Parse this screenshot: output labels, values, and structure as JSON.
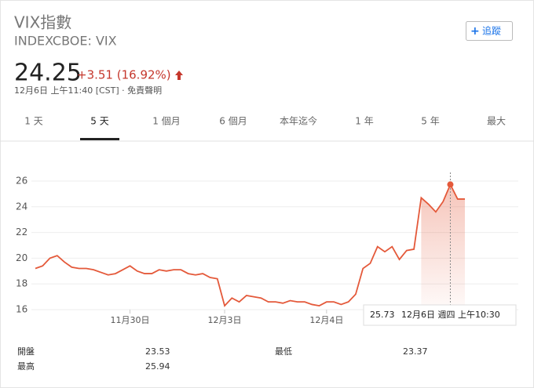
{
  "header": {
    "title": "VIX指數",
    "ticker": "INDEXCBOE: VIX",
    "price": 24.25,
    "change": "+3.51 (16.92%)",
    "timestamp": "12月6日 上午11:40 [CST] · 免責聲明",
    "follow": "追蹤"
  },
  "tabs": [
    "1 天",
    "5 天",
    "1 個月",
    "6 個月",
    "本年迄今",
    "1 年",
    "5 年",
    "最大"
  ],
  "active_tab": 1,
  "chart_data": {
    "type": "line",
    "color": "#e4593a",
    "categories": [
      null,
      null,
      null,
      null,
      null,
      null,
      null,
      null,
      null,
      null,
      null,
      null,
      null,
      "11月30日",
      null,
      null,
      null,
      null,
      null,
      null,
      null,
      null,
      null,
      null,
      null,
      null,
      "12月3日",
      null,
      null,
      null,
      null,
      null,
      null,
      null,
      null,
      null,
      null,
      null,
      null,
      null,
      "12月4日",
      null,
      null,
      null,
      null,
      null,
      null,
      null,
      null,
      null,
      null,
      null,
      null,
      null,
      null,
      null,
      null,
      null,
      null,
      null
    ],
    "values": [
      19.2,
      19.4,
      20.0,
      20.2,
      19.7,
      19.3,
      19.2,
      19.2,
      19.1,
      18.9,
      18.7,
      18.8,
      19.1,
      19.4,
      19.0,
      18.8,
      18.8,
      19.1,
      19.0,
      19.1,
      19.1,
      18.8,
      18.7,
      18.8,
      18.5,
      18.4,
      16.3,
      16.9,
      16.6,
      17.1,
      17.0,
      16.9,
      16.6,
      16.6,
      16.5,
      16.7,
      16.6,
      16.6,
      16.4,
      16.3,
      16.6,
      16.6,
      16.4,
      16.6,
      17.2,
      19.2,
      19.6,
      20.9,
      20.5,
      20.9,
      19.9,
      20.6,
      20.7,
      24.7,
      24.2,
      23.6,
      24.4,
      25.73,
      24.6,
      24.6
    ],
    "ylim": [
      16,
      27
    ],
    "yticks": [
      16,
      18,
      20,
      22,
      24,
      26
    ],
    "grid": true,
    "tooltip": {
      "index": 57,
      "date": "12月6日 週四 上午10:30"
    }
  },
  "stats": [
    {
      "label": "開盤",
      "value": 23.53
    },
    {
      "label": "最低",
      "value": 23.37
    },
    {
      "label": "最高",
      "value": 25.94
    }
  ]
}
